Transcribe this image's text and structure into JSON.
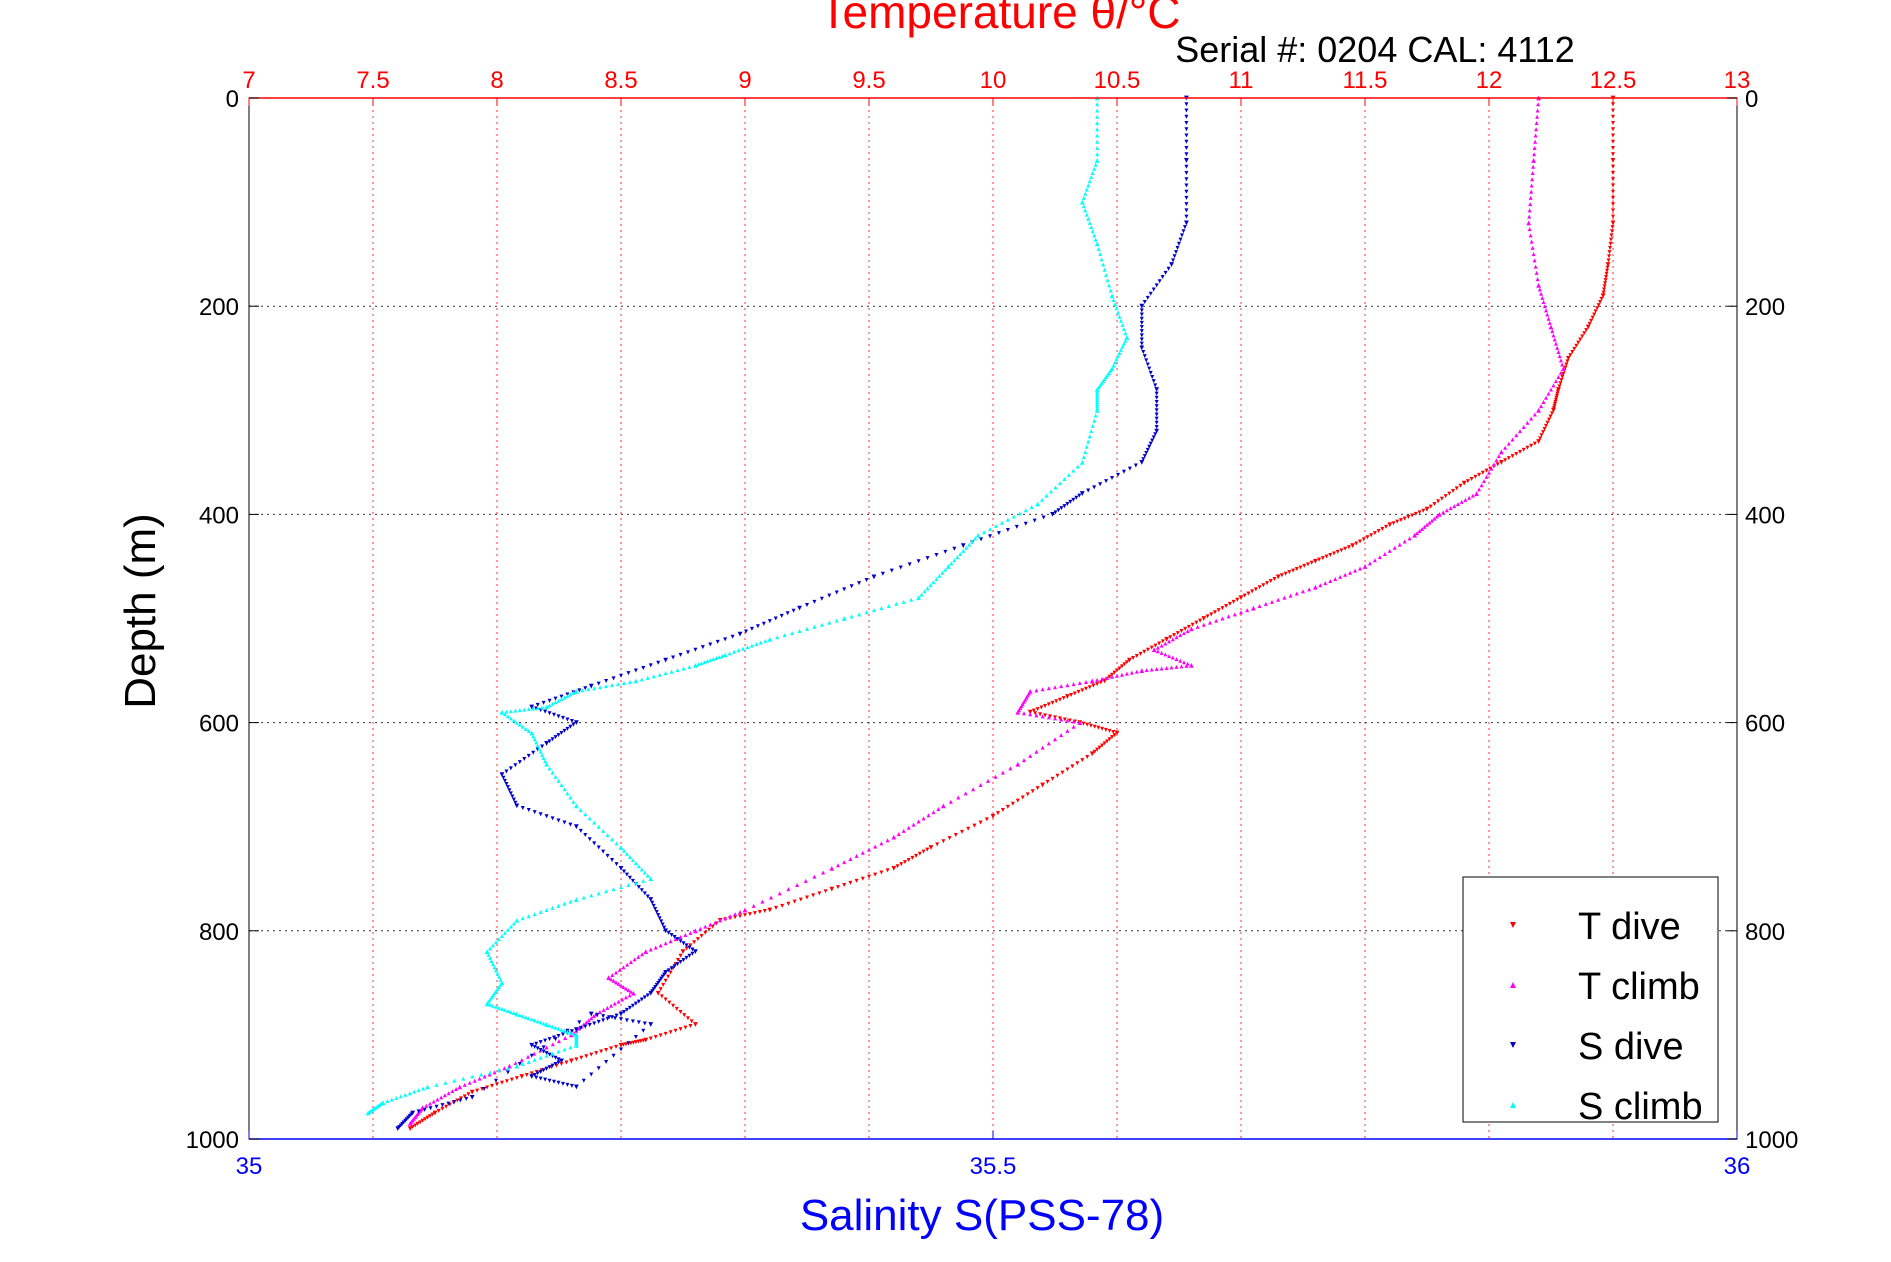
{
  "colors": {
    "temperature_axis": "#ff0000",
    "salinity_axis": "#0000ff",
    "t_dive": "#ff0000",
    "t_climb": "#ff00ff",
    "s_dive": "#0000cc",
    "s_climb": "#00ffff",
    "grid_temp": "#ff0000",
    "grid_depth": "#000000"
  },
  "chart_data": {
    "type": "scatter",
    "title": "Temperature θ/°C",
    "subtitle": "Serial #: 0204  CAL: 4112",
    "ylabel": "Depth (m)",
    "xlabel": "Salinity S(PSS-78)",
    "y_reversed": true,
    "ylim": [
      0,
      1000
    ],
    "y_ticks": [
      "0",
      "200",
      "400",
      "600",
      "800",
      "1000"
    ],
    "temperature_axis": {
      "lim": [
        7,
        13
      ],
      "position": "top",
      "ticks": [
        "7",
        "7.5",
        "8",
        "8.5",
        "9",
        "9.5",
        "10",
        "10.5",
        "11",
        "11.5",
        "12",
        "12.5",
        "13"
      ],
      "grid": true
    },
    "salinity_axis": {
      "lim": [
        35,
        36
      ],
      "position": "bottom",
      "ticks": [
        "35",
        "35.5",
        "36"
      ]
    },
    "legend": {
      "placement": "bottom-right",
      "entries": [
        "T dive",
        "T climb",
        "S dive",
        "S climb"
      ]
    },
    "series": [
      {
        "name": "T dive",
        "axis": "temperature",
        "marker": "triangle-down",
        "x": [
          12.5,
          12.5,
          12.5,
          12.48,
          12.46,
          12.4,
          12.32,
          12.28,
          12.26,
          12.2,
          12.05,
          11.9,
          11.75,
          11.6,
          11.45,
          11.3,
          11.15,
          11.0,
          10.85,
          10.7,
          10.55,
          10.45,
          10.3,
          10.15,
          10.35,
          10.5,
          10.4,
          10.2,
          10.0,
          9.75,
          9.6,
          9.35,
          9.1,
          8.9,
          8.75,
          8.65,
          8.8,
          8.6,
          8.5,
          8.3,
          8.1,
          7.9,
          7.75,
          7.65
        ],
        "y": [
          0,
          60,
          120,
          160,
          190,
          220,
          250,
          280,
          300,
          330,
          350,
          370,
          395,
          410,
          430,
          445,
          460,
          480,
          500,
          520,
          540,
          560,
          575,
          590,
          600,
          610,
          630,
          660,
          690,
          720,
          740,
          760,
          780,
          790,
          820,
          860,
          890,
          905,
          910,
          925,
          940,
          955,
          975,
          990
        ]
      },
      {
        "name": "T climb",
        "axis": "temperature",
        "marker": "triangle-up",
        "x": [
          12.2,
          12.18,
          12.16,
          12.2,
          12.25,
          12.3,
          12.2,
          12.05,
          11.95,
          11.8,
          11.7,
          11.5,
          11.3,
          11.05,
          10.8,
          10.65,
          10.8,
          10.6,
          10.4,
          10.15,
          10.1,
          10.35,
          10.1,
          9.8,
          9.6,
          9.35,
          9.0,
          8.8,
          8.6,
          8.45,
          8.55,
          8.4,
          8.3,
          8.05,
          7.85,
          7.7,
          7.65
        ],
        "y": [
          0,
          60,
          120,
          180,
          220,
          260,
          300,
          340,
          380,
          400,
          420,
          450,
          470,
          490,
          510,
          530,
          545,
          550,
          560,
          570,
          590,
          600,
          640,
          680,
          710,
          740,
          780,
          800,
          820,
          845,
          860,
          880,
          900,
          930,
          950,
          970,
          985
        ]
      },
      {
        "name": "S dive",
        "axis": "salinity",
        "marker": "triangle-down",
        "x": [
          35.63,
          35.63,
          35.63,
          35.62,
          35.6,
          35.6,
          35.61,
          35.61,
          35.6,
          35.56,
          35.54,
          35.48,
          35.42,
          35.37,
          35.33,
          35.28,
          35.23,
          35.19,
          35.22,
          35.2,
          35.17,
          35.18,
          35.22,
          35.25,
          35.27,
          35.28,
          35.3,
          35.28,
          35.27,
          35.25,
          35.22,
          35.19,
          35.21,
          35.19,
          35.22,
          35.27,
          35.23,
          35.15,
          35.11,
          35.1
        ],
        "y": [
          0,
          60,
          120,
          160,
          200,
          240,
          280,
          320,
          350,
          380,
          400,
          430,
          460,
          490,
          515,
          540,
          565,
          585,
          600,
          620,
          650,
          680,
          700,
          740,
          770,
          800,
          820,
          840,
          860,
          880,
          895,
          910,
          925,
          940,
          950,
          890,
          880,
          960,
          975,
          990
        ]
      },
      {
        "name": "S climb",
        "axis": "salinity",
        "marker": "triangle-up",
        "x": [
          35.57,
          35.57,
          35.56,
          35.57,
          35.58,
          35.59,
          35.58,
          35.57,
          35.57,
          35.56,
          35.53,
          35.49,
          35.47,
          35.45,
          35.4,
          35.35,
          35.32,
          35.3,
          35.26,
          35.22,
          35.2,
          35.17,
          35.19,
          35.2,
          35.22,
          35.25,
          35.27,
          35.22,
          35.18,
          35.16,
          35.17,
          35.16,
          35.18,
          35.2,
          35.22,
          35.22,
          35.18,
          35.12,
          35.09,
          35.08
        ],
        "y": [
          0,
          60,
          100,
          140,
          190,
          230,
          260,
          280,
          300,
          350,
          390,
          420,
          450,
          480,
          500,
          520,
          535,
          545,
          560,
          570,
          585,
          590,
          610,
          640,
          680,
          720,
          750,
          770,
          790,
          820,
          850,
          870,
          880,
          890,
          900,
          910,
          930,
          950,
          965,
          975
        ]
      }
    ]
  }
}
